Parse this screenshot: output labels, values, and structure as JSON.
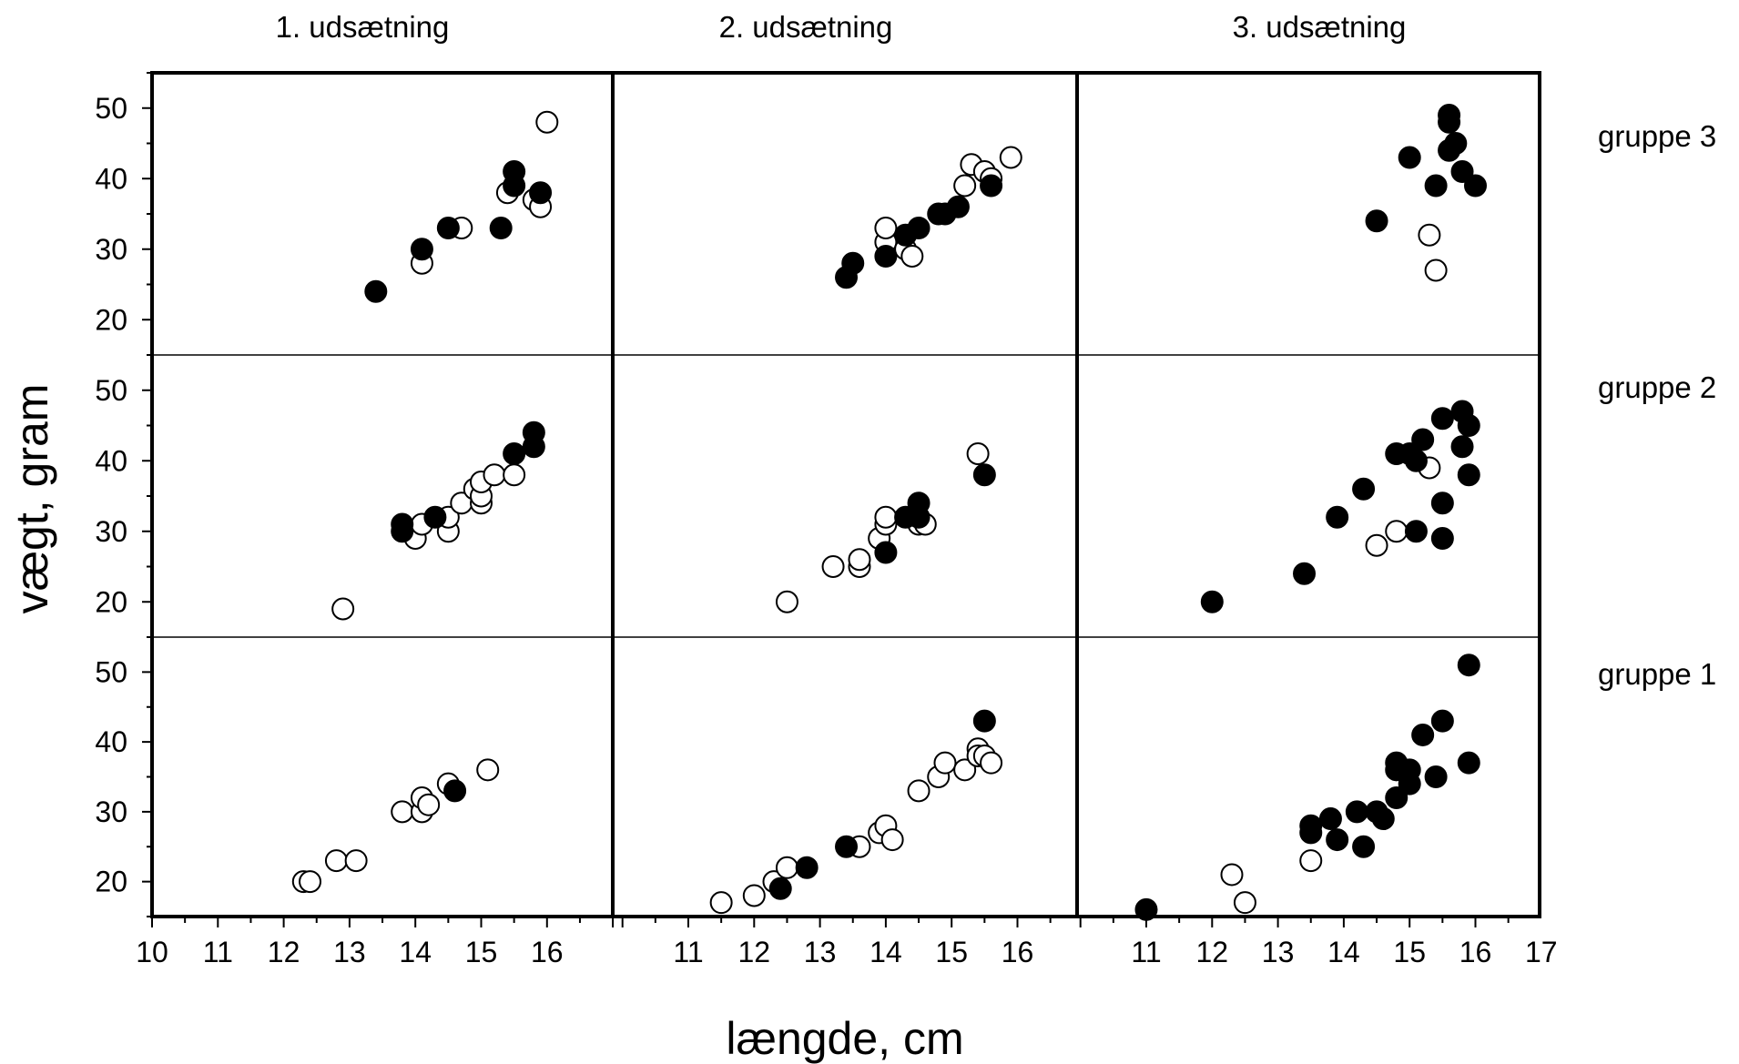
{
  "chart_data": {
    "type": "scatter",
    "xlabel": "længde, cm",
    "ylabel": "vægt, gram",
    "ylim": [
      15,
      55
    ],
    "yticks": [
      20,
      30,
      40,
      50
    ],
    "columns": [
      {
        "title": "1. udsætning",
        "xlim": [
          10,
          17
        ],
        "xticks": [
          10,
          11,
          12,
          13,
          14,
          15,
          16
        ]
      },
      {
        "title": "2. udsætning",
        "xlim": [
          10,
          17
        ],
        "xticks": [
          11,
          12,
          13,
          14,
          15,
          16
        ]
      },
      {
        "title": "3. udsætning",
        "xlim": [
          10,
          17
        ],
        "xticks": [
          11,
          12,
          13,
          14,
          15,
          16,
          17
        ]
      }
    ],
    "rows": [
      {
        "label": "gruppe 3"
      },
      {
        "label": "gruppe 2"
      },
      {
        "label": "gruppe 1"
      }
    ],
    "marker_styles": {
      "open": "hollow circle",
      "filled": "solid circle"
    },
    "panels": [
      {
        "row": 0,
        "col": 0,
        "open": [
          [
            14.1,
            28
          ],
          [
            14.7,
            33
          ],
          [
            15.4,
            38
          ],
          [
            15.8,
            37
          ],
          [
            15.9,
            36
          ],
          [
            16.0,
            48
          ]
        ],
        "filled": [
          [
            13.4,
            24
          ],
          [
            14.1,
            30
          ],
          [
            14.5,
            33
          ],
          [
            15.3,
            33
          ],
          [
            15.5,
            39
          ],
          [
            15.5,
            41
          ],
          [
            15.9,
            38
          ]
        ]
      },
      {
        "row": 0,
        "col": 1,
        "open": [
          [
            14.0,
            31
          ],
          [
            14.0,
            33
          ],
          [
            14.3,
            30
          ],
          [
            14.4,
            29
          ],
          [
            15.2,
            39
          ],
          [
            15.3,
            42
          ],
          [
            15.5,
            41
          ],
          [
            15.6,
            40
          ],
          [
            15.9,
            43
          ]
        ],
        "filled": [
          [
            13.4,
            26
          ],
          [
            13.5,
            28
          ],
          [
            14.0,
            29
          ],
          [
            14.3,
            32
          ],
          [
            14.5,
            33
          ],
          [
            14.8,
            35
          ],
          [
            14.9,
            35
          ],
          [
            15.1,
            36
          ],
          [
            15.6,
            39
          ]
        ]
      },
      {
        "row": 0,
        "col": 2,
        "open": [
          [
            15.3,
            32
          ],
          [
            15.4,
            27
          ]
        ],
        "filled": [
          [
            14.5,
            34
          ],
          [
            15.0,
            43
          ],
          [
            15.4,
            39
          ],
          [
            15.6,
            44
          ],
          [
            15.6,
            48
          ],
          [
            15.6,
            49
          ],
          [
            15.7,
            45
          ],
          [
            15.8,
            41
          ],
          [
            16.0,
            39
          ]
        ]
      },
      {
        "row": 1,
        "col": 0,
        "open": [
          [
            12.9,
            19
          ],
          [
            14.0,
            29
          ],
          [
            14.1,
            31
          ],
          [
            14.5,
            30
          ],
          [
            14.5,
            32
          ],
          [
            14.7,
            34
          ],
          [
            14.9,
            36
          ],
          [
            15.0,
            34
          ],
          [
            15.0,
            35
          ],
          [
            15.0,
            37
          ],
          [
            15.2,
            38
          ],
          [
            15.5,
            38
          ]
        ],
        "filled": [
          [
            13.8,
            30
          ],
          [
            13.8,
            31
          ],
          [
            14.3,
            32
          ],
          [
            15.5,
            41
          ],
          [
            15.8,
            42
          ],
          [
            15.8,
            44
          ]
        ]
      },
      {
        "row": 1,
        "col": 1,
        "open": [
          [
            12.5,
            20
          ],
          [
            13.2,
            25
          ],
          [
            13.6,
            25
          ],
          [
            13.6,
            26
          ],
          [
            13.9,
            29
          ],
          [
            14.0,
            31
          ],
          [
            14.0,
            32
          ],
          [
            14.5,
            31
          ],
          [
            14.6,
            31
          ],
          [
            15.4,
            41
          ]
        ],
        "filled": [
          [
            14.0,
            27
          ],
          [
            14.3,
            32
          ],
          [
            14.5,
            32
          ],
          [
            14.5,
            34
          ],
          [
            15.5,
            38
          ]
        ]
      },
      {
        "row": 1,
        "col": 2,
        "open": [
          [
            14.5,
            28
          ],
          [
            14.8,
            30
          ],
          [
            15.3,
            39
          ]
        ],
        "filled": [
          [
            12.0,
            20
          ],
          [
            13.4,
            24
          ],
          [
            13.9,
            32
          ],
          [
            14.3,
            36
          ],
          [
            14.8,
            41
          ],
          [
            15.0,
            41
          ],
          [
            15.1,
            40
          ],
          [
            15.1,
            30
          ],
          [
            15.2,
            43
          ],
          [
            15.5,
            46
          ],
          [
            15.5,
            34
          ],
          [
            15.5,
            29
          ],
          [
            15.8,
            47
          ],
          [
            15.8,
            42
          ],
          [
            15.9,
            45
          ],
          [
            15.9,
            38
          ]
        ]
      },
      {
        "row": 2,
        "col": 0,
        "open": [
          [
            12.3,
            20
          ],
          [
            12.4,
            20
          ],
          [
            12.8,
            23
          ],
          [
            13.1,
            23
          ],
          [
            13.8,
            30
          ],
          [
            14.1,
            30
          ],
          [
            14.1,
            32
          ],
          [
            14.2,
            31
          ],
          [
            14.5,
            34
          ],
          [
            15.1,
            36
          ]
        ],
        "filled": [
          [
            14.6,
            33
          ]
        ]
      },
      {
        "row": 2,
        "col": 1,
        "open": [
          [
            11.5,
            17
          ],
          [
            12.0,
            18
          ],
          [
            12.3,
            20
          ],
          [
            12.5,
            22
          ],
          [
            13.6,
            25
          ],
          [
            13.9,
            27
          ],
          [
            14.0,
            28
          ],
          [
            14.1,
            26
          ],
          [
            14.5,
            33
          ],
          [
            14.8,
            35
          ],
          [
            14.9,
            37
          ],
          [
            15.2,
            36
          ],
          [
            15.4,
            39
          ],
          [
            15.4,
            38
          ],
          [
            15.5,
            38
          ],
          [
            15.6,
            37
          ]
        ],
        "filled": [
          [
            12.4,
            19
          ],
          [
            12.8,
            22
          ],
          [
            13.4,
            25
          ],
          [
            15.5,
            43
          ]
        ]
      },
      {
        "row": 2,
        "col": 2,
        "open": [
          [
            12.3,
            21
          ],
          [
            12.5,
            17
          ],
          [
            13.5,
            23
          ]
        ],
        "filled": [
          [
            11.0,
            16
          ],
          [
            13.5,
            27
          ],
          [
            13.5,
            28
          ],
          [
            13.8,
            29
          ],
          [
            13.9,
            26
          ],
          [
            14.2,
            30
          ],
          [
            14.3,
            25
          ],
          [
            14.5,
            30
          ],
          [
            14.6,
            29
          ],
          [
            14.8,
            32
          ],
          [
            14.8,
            36
          ],
          [
            14.8,
            37
          ],
          [
            15.0,
            34
          ],
          [
            15.0,
            36
          ],
          [
            15.2,
            41
          ],
          [
            15.4,
            35
          ],
          [
            15.5,
            43
          ],
          [
            15.9,
            51
          ],
          [
            15.9,
            37
          ]
        ]
      }
    ]
  }
}
